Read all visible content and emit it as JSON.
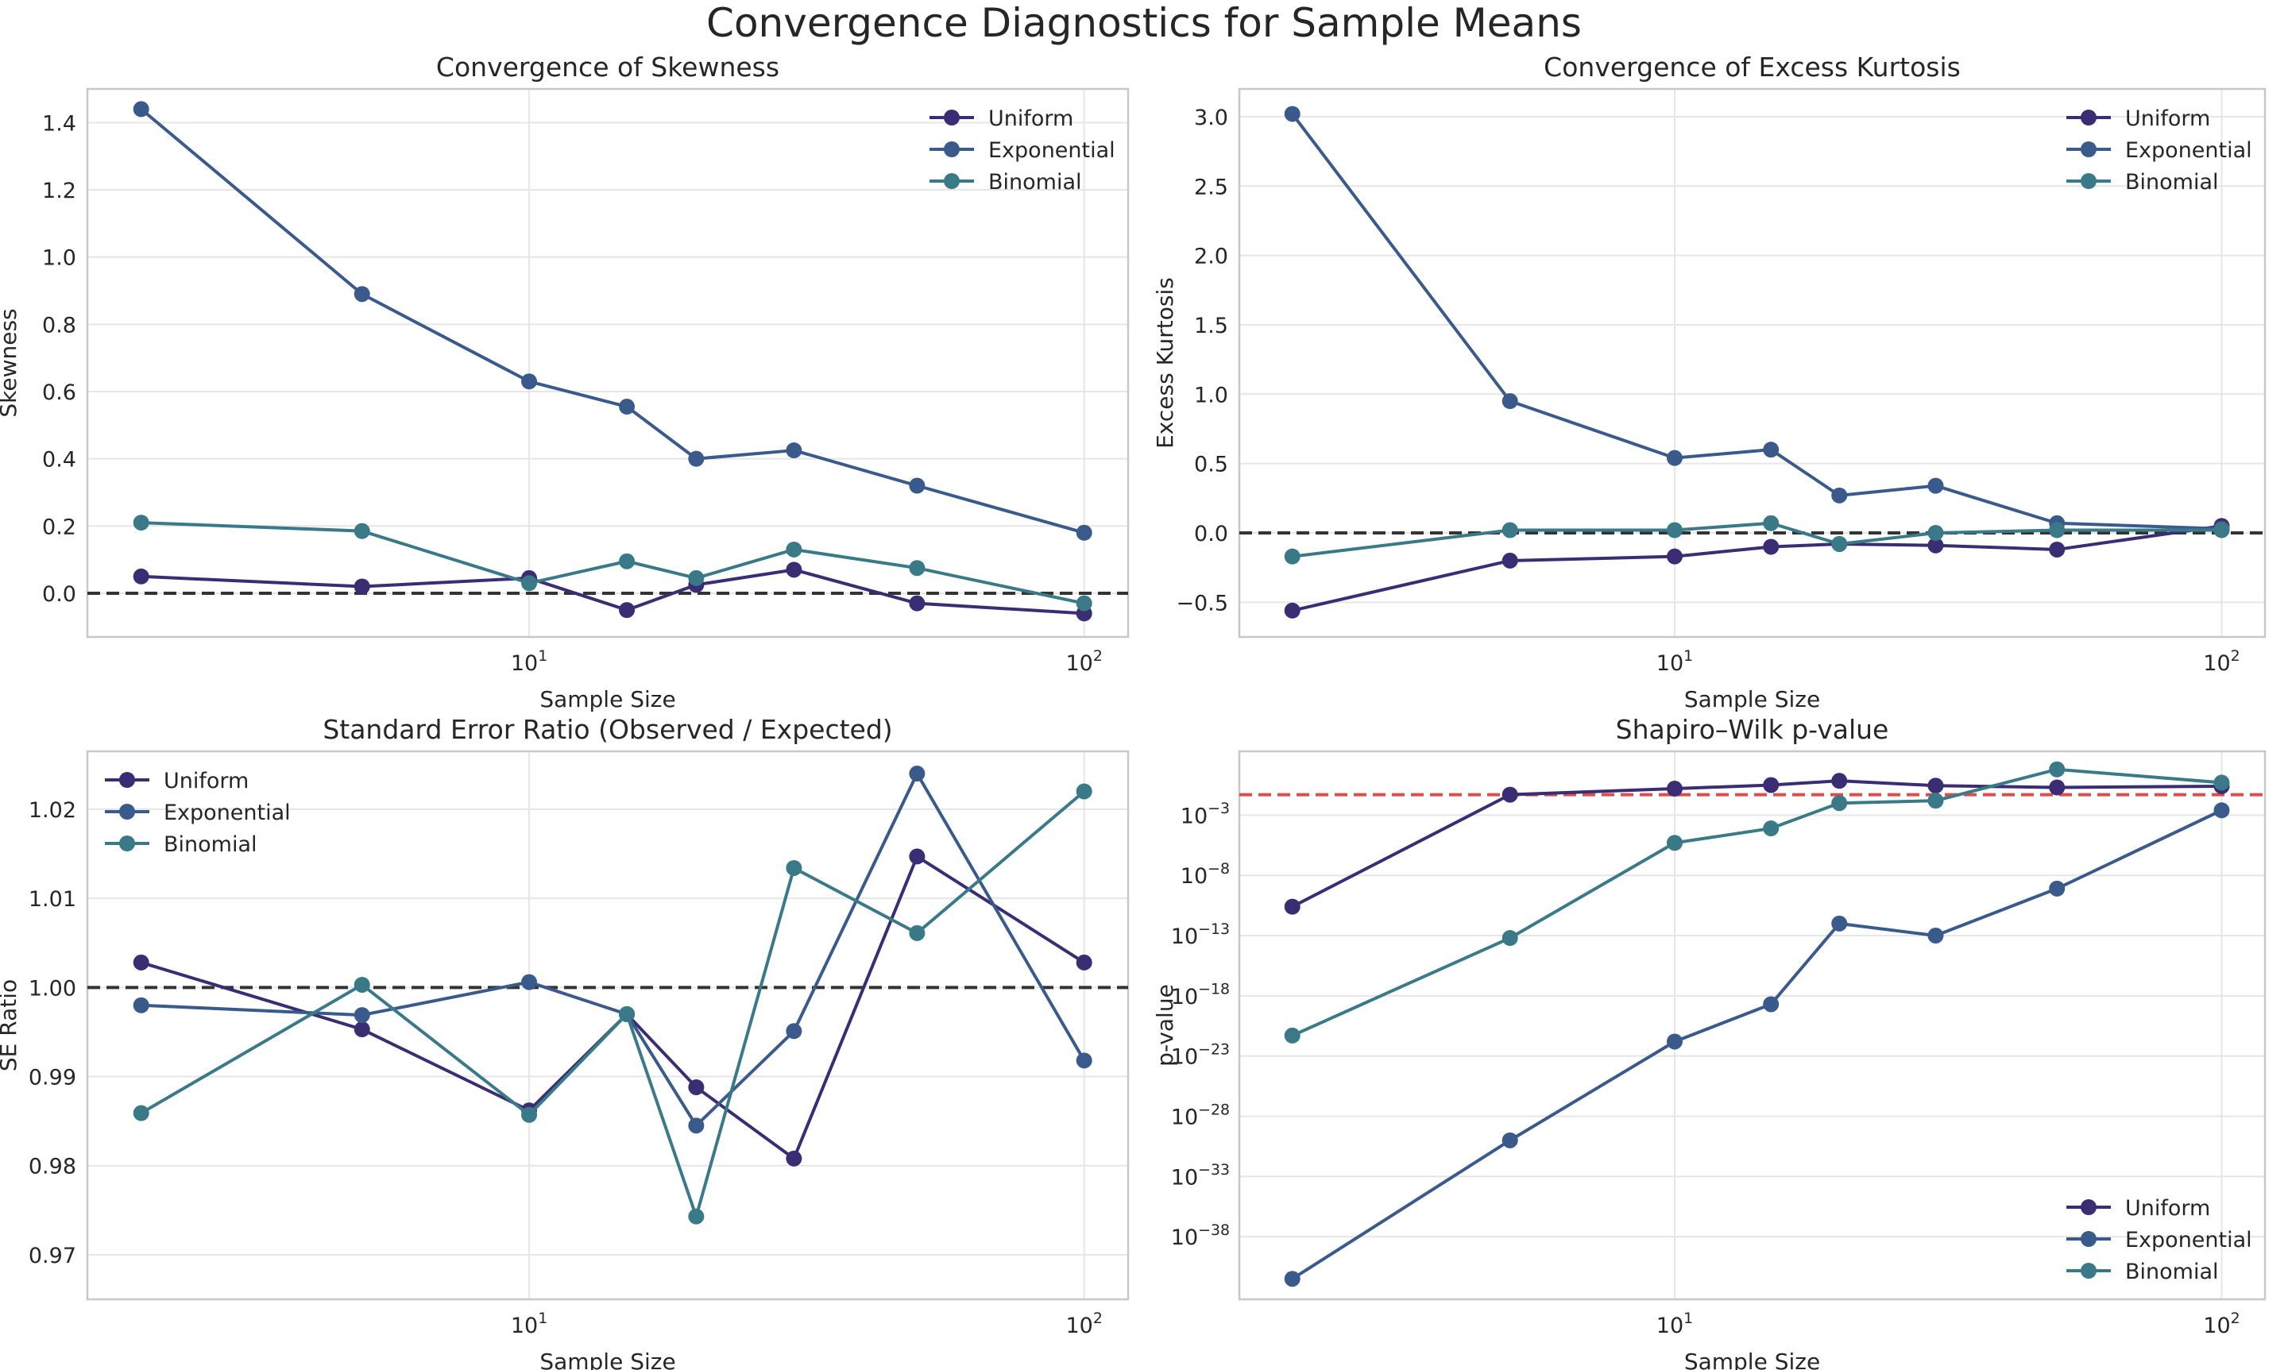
{
  "figure": {
    "title": "Convergence Diagnostics for Sample Means"
  },
  "colors": {
    "Uniform": "#3b2d73",
    "Exponential": "#3b5a8c",
    "Binomial": "#3a7a88",
    "reference_black": "#333333",
    "reference_red": "#e04b4b"
  },
  "chart_data": [
    {
      "type": "line",
      "title": "Convergence of Skewness",
      "xlabel": "Sample Size",
      "ylabel": "Skewness",
      "xscale": "log",
      "yscale": "linear",
      "xlim": [
        1.6,
        120
      ],
      "ylim": [
        -0.13,
        1.5
      ],
      "x": [
        2,
        5,
        10,
        15,
        20,
        30,
        50,
        100
      ],
      "x_ticks": [
        {
          "value": 10,
          "label": "10",
          "exp": "1"
        },
        {
          "value": 100,
          "label": "10",
          "exp": "2"
        }
      ],
      "y_ticks": [
        {
          "value": 0.0,
          "label": "0.0"
        },
        {
          "value": 0.2,
          "label": "0.2"
        },
        {
          "value": 0.4,
          "label": "0.4"
        },
        {
          "value": 0.6,
          "label": "0.6"
        },
        {
          "value": 0.8,
          "label": "0.8"
        },
        {
          "value": 1.0,
          "label": "1.0"
        },
        {
          "value": 1.2,
          "label": "1.2"
        },
        {
          "value": 1.4,
          "label": "1.4"
        }
      ],
      "reference_line": {
        "y": 0,
        "style": "dashed",
        "color": "#333333"
      },
      "legend": {
        "position": "top-right"
      },
      "grid": true,
      "series": [
        {
          "name": "Uniform",
          "values": [
            0.05,
            0.02,
            0.045,
            -0.05,
            0.025,
            0.07,
            -0.03,
            -0.06
          ]
        },
        {
          "name": "Exponential",
          "values": [
            1.44,
            0.89,
            0.63,
            0.555,
            0.4,
            0.425,
            0.32,
            0.18
          ]
        },
        {
          "name": "Binomial",
          "values": [
            0.21,
            0.185,
            0.03,
            0.095,
            0.045,
            0.13,
            0.075,
            -0.03
          ]
        }
      ]
    },
    {
      "type": "line",
      "title": "Convergence of Excess Kurtosis",
      "xlabel": "Sample Size",
      "ylabel": "Excess Kurtosis",
      "xscale": "log",
      "yscale": "linear",
      "xlim": [
        1.6,
        120
      ],
      "ylim": [
        -0.75,
        3.2
      ],
      "x": [
        2,
        5,
        10,
        15,
        20,
        30,
        50,
        100
      ],
      "x_ticks": [
        {
          "value": 10,
          "label": "10",
          "exp": "1"
        },
        {
          "value": 100,
          "label": "10",
          "exp": "2"
        }
      ],
      "y_ticks": [
        {
          "value": -0.5,
          "label": "−0.5"
        },
        {
          "value": 0.0,
          "label": "0.0"
        },
        {
          "value": 0.5,
          "label": "0.5"
        },
        {
          "value": 1.0,
          "label": "1.0"
        },
        {
          "value": 1.5,
          "label": "1.5"
        },
        {
          "value": 2.0,
          "label": "2.0"
        },
        {
          "value": 2.5,
          "label": "2.5"
        },
        {
          "value": 3.0,
          "label": "3.0"
        }
      ],
      "reference_line": {
        "y": 0,
        "style": "dashed",
        "color": "#333333"
      },
      "legend": {
        "position": "top-right"
      },
      "grid": true,
      "series": [
        {
          "name": "Uniform",
          "values": [
            -0.56,
            -0.2,
            -0.17,
            -0.1,
            -0.08,
            -0.09,
            -0.12,
            0.05
          ]
        },
        {
          "name": "Exponential",
          "values": [
            3.02,
            0.95,
            0.54,
            0.6,
            0.27,
            0.34,
            0.07,
            0.03
          ]
        },
        {
          "name": "Binomial",
          "values": [
            -0.17,
            0.02,
            0.02,
            0.07,
            -0.08,
            0.0,
            0.02,
            0.02
          ]
        }
      ]
    },
    {
      "type": "line",
      "title": "Standard Error Ratio (Observed / Expected)",
      "xlabel": "Sample Size",
      "ylabel": "SE Ratio",
      "xscale": "log",
      "yscale": "linear",
      "xlim": [
        1.6,
        120
      ],
      "ylim": [
        0.965,
        1.0265
      ],
      "x": [
        2,
        5,
        10,
        15,
        20,
        30,
        50,
        100
      ],
      "x_ticks": [
        {
          "value": 10,
          "label": "10",
          "exp": "1"
        },
        {
          "value": 100,
          "label": "10",
          "exp": "2"
        }
      ],
      "y_ticks": [
        {
          "value": 0.97,
          "label": "0.97"
        },
        {
          "value": 0.98,
          "label": "0.98"
        },
        {
          "value": 0.99,
          "label": "0.99"
        },
        {
          "value": 1.0,
          "label": "1.00"
        },
        {
          "value": 1.01,
          "label": "1.01"
        },
        {
          "value": 1.02,
          "label": "1.02"
        }
      ],
      "reference_line": {
        "y": 1.0,
        "style": "dashed",
        "color": "#333333"
      },
      "legend": {
        "position": "top-left"
      },
      "grid": true,
      "series": [
        {
          "name": "Uniform",
          "values": [
            1.0028,
            0.9953,
            0.9862,
            0.997,
            0.9888,
            0.9808,
            1.0147,
            1.0028
          ]
        },
        {
          "name": "Exponential",
          "values": [
            0.998,
            0.9969,
            1.0006,
            0.997,
            0.9845,
            0.9951,
            1.024,
            0.9918
          ]
        },
        {
          "name": "Binomial",
          "values": [
            0.9859,
            1.0003,
            0.9857,
            0.997,
            0.9743,
            1.0134,
            1.0061,
            1.022
          ]
        }
      ]
    },
    {
      "type": "line",
      "title": "Shapiro–Wilk p-value",
      "xlabel": "Sample Size",
      "ylabel": "p-value",
      "xscale": "log",
      "yscale": "log",
      "xlim": [
        1.6,
        120
      ],
      "ylim_log10": [
        -43.2,
        2.3
      ],
      "x": [
        2,
        5,
        10,
        15,
        20,
        30,
        50,
        100
      ],
      "x_ticks": [
        {
          "value": 10,
          "label": "10",
          "exp": "1"
        },
        {
          "value": 100,
          "label": "10",
          "exp": "2"
        }
      ],
      "y_ticks": [
        {
          "log10": -3,
          "label": "10",
          "exp": "−3"
        },
        {
          "log10": -8,
          "label": "10",
          "exp": "−8"
        },
        {
          "log10": -13,
          "label": "10",
          "exp": "−13"
        },
        {
          "log10": -18,
          "label": "10",
          "exp": "−18"
        },
        {
          "log10": -23,
          "label": "10",
          "exp": "−23"
        },
        {
          "log10": -28,
          "label": "10",
          "exp": "−28"
        },
        {
          "log10": -33,
          "label": "10",
          "exp": "−33"
        },
        {
          "log10": -38,
          "label": "10",
          "exp": "−38"
        }
      ],
      "reference_line": {
        "y": 0.05,
        "log10": -1.3,
        "style": "dashed",
        "color": "#e04b4b"
      },
      "legend": {
        "position": "bottom-right"
      },
      "grid": true,
      "series": [
        {
          "name": "Uniform",
          "log10_values": [
            -10.6,
            -1.3,
            -0.8,
            -0.5,
            -0.15,
            -0.55,
            -0.7,
            -0.6
          ]
        },
        {
          "name": "Exponential",
          "log10_values": [
            -41.5,
            -30.0,
            -21.8,
            -18.7,
            -12.0,
            -13.0,
            -9.1,
            -2.6
          ]
        },
        {
          "name": "Binomial",
          "log10_values": [
            -21.3,
            -13.2,
            -5.3,
            -4.1,
            -2.0,
            -1.8,
            0.8,
            -0.3
          ]
        }
      ]
    }
  ]
}
